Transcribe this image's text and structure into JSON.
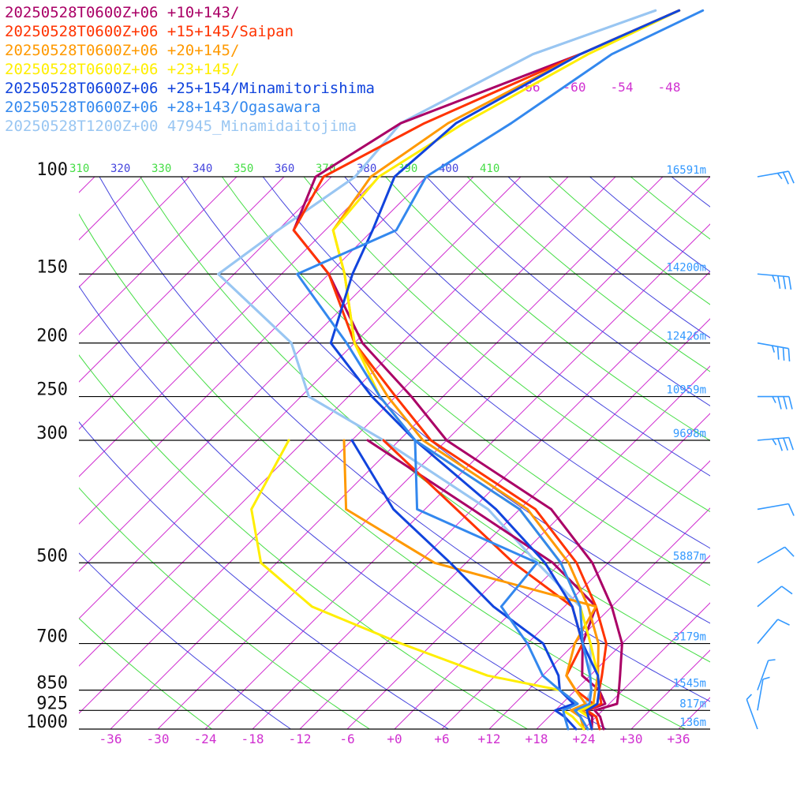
{
  "chart_data": {
    "type": "line",
    "title": "",
    "xlabel": "",
    "ylabel": "",
    "pressure_axis": {
      "scale": "log",
      "range_hpa": [
        1000,
        100
      ],
      "levels": [
        {
          "p": 100,
          "label": "100",
          "height": "16591m"
        },
        {
          "p": 150,
          "label": "150",
          "height": "14200m"
        },
        {
          "p": 200,
          "label": "200",
          "height": "12426m"
        },
        {
          "p": 250,
          "label": "250",
          "height": "10959m"
        },
        {
          "p": 300,
          "label": "300",
          "height": "9698m"
        },
        {
          "p": 500,
          "label": "500",
          "height": "5887m"
        },
        {
          "p": 700,
          "label": "700",
          "height": "3179m"
        },
        {
          "p": 850,
          "label": "850",
          "height": "1545m"
        },
        {
          "p": 925,
          "label": "925",
          "height": "817m"
        },
        {
          "p": 1000,
          "label": "1000",
          "height": "136m"
        }
      ]
    },
    "temperature_axis": {
      "range_c": [
        -40,
        40
      ],
      "ticks": [
        {
          "t": -36,
          "label": "-36"
        },
        {
          "t": -30,
          "label": "-30"
        },
        {
          "t": -24,
          "label": "-24"
        },
        {
          "t": -18,
          "label": "-18"
        },
        {
          "t": -12,
          "label": "-12"
        },
        {
          "t": -6,
          "label": "-6"
        },
        {
          "t": 0,
          "label": "+0"
        },
        {
          "t": 6,
          "label": "+6"
        },
        {
          "t": 12,
          "label": "+12"
        },
        {
          "t": 18,
          "label": "+18"
        },
        {
          "t": 24,
          "label": "+24"
        },
        {
          "t": 30,
          "label": "+30"
        },
        {
          "t": 36,
          "label": "+36"
        }
      ],
      "upper_labels": [
        "-66",
        "-60",
        "-54",
        "-48"
      ]
    },
    "theta_labels": [
      {
        "value": "310",
        "color": "#44dd44"
      },
      {
        "value": "320",
        "color": "#4444dd"
      },
      {
        "value": "330",
        "color": "#44dd44"
      },
      {
        "value": "340",
        "color": "#4444dd"
      },
      {
        "value": "350",
        "color": "#44dd44"
      },
      {
        "value": "360",
        "color": "#4444dd"
      },
      {
        "value": "370",
        "color": "#44dd44"
      },
      {
        "value": "380",
        "color": "#4444dd"
      },
      {
        "value": "390",
        "color": "#44dd44"
      },
      {
        "value": "400",
        "color": "#4444dd"
      },
      {
        "value": "410",
        "color": "#44dd44"
      }
    ],
    "series": [
      {
        "name": "20250528T0600Z+06 +10+143/",
        "color": "#aa0066",
        "temperature": [
          [
            1000,
            26.5
          ],
          [
            950,
            24.5
          ],
          [
            925,
            23
          ],
          [
            900,
            25
          ],
          [
            850,
            23.5
          ],
          [
            800,
            21.8
          ],
          [
            700,
            18
          ],
          [
            600,
            12
          ],
          [
            500,
            4
          ],
          [
            400,
            -8
          ],
          [
            300,
            -30
          ],
          [
            250,
            -40
          ],
          [
            200,
            -53
          ],
          [
            150,
            -66
          ],
          [
            125,
            -76
          ],
          [
            100,
            -80
          ],
          [
            80,
            -76
          ],
          [
            60,
            -62
          ],
          [
            50,
            -55
          ]
        ],
        "dewpoint": [
          [
            1000,
            25
          ],
          [
            950,
            23.5
          ],
          [
            925,
            22
          ],
          [
            900,
            23.5
          ],
          [
            850,
            21
          ],
          [
            800,
            17
          ],
          [
            700,
            13
          ],
          [
            600,
            10
          ],
          [
            500,
            -1
          ],
          [
            400,
            -18
          ],
          [
            300,
            -40
          ]
        ]
      },
      {
        "name": "20250528T0600Z+06 +15+145/Saipan",
        "color": "#ff3300",
        "temperature": [
          [
            1000,
            26
          ],
          [
            950,
            24
          ],
          [
            925,
            22
          ],
          [
            900,
            23
          ],
          [
            850,
            21
          ],
          [
            800,
            19.5
          ],
          [
            700,
            16
          ],
          [
            600,
            10
          ],
          [
            500,
            2
          ],
          [
            400,
            -10
          ],
          [
            300,
            -32
          ],
          [
            250,
            -42
          ],
          [
            200,
            -54
          ],
          [
            150,
            -66
          ],
          [
            125,
            -76
          ],
          [
            100,
            -79
          ],
          [
            80,
            -73
          ],
          [
            60,
            -62
          ],
          [
            50,
            -55
          ]
        ],
        "dewpoint": [
          [
            1000,
            25
          ],
          [
            950,
            23
          ],
          [
            925,
            21.5
          ],
          [
            900,
            22
          ],
          [
            850,
            18
          ],
          [
            800,
            15
          ],
          [
            700,
            13
          ],
          [
            600,
            7
          ],
          [
            500,
            -6
          ],
          [
            400,
            -20
          ],
          [
            300,
            -38
          ]
        ]
      },
      {
        "name": "20250528T0600Z+06 +20+145/",
        "color": "#ff9900",
        "temperature": [
          [
            1000,
            25
          ],
          [
            950,
            23
          ],
          [
            925,
            21.5
          ],
          [
            900,
            22
          ],
          [
            850,
            20.5
          ],
          [
            800,
            19
          ],
          [
            700,
            15
          ],
          [
            600,
            9
          ],
          [
            500,
            1
          ],
          [
            400,
            -11
          ],
          [
            300,
            -33
          ],
          [
            250,
            -43
          ],
          [
            200,
            -54
          ],
          [
            150,
            -64
          ],
          [
            125,
            -71
          ],
          [
            100,
            -73
          ],
          [
            80,
            -70
          ],
          [
            60,
            -62
          ],
          [
            50,
            -55
          ]
        ],
        "dewpoint": [
          [
            1000,
            24
          ],
          [
            950,
            22
          ],
          [
            925,
            20
          ],
          [
            900,
            21
          ],
          [
            850,
            18
          ],
          [
            800,
            15
          ],
          [
            700,
            12
          ],
          [
            600,
            10
          ],
          [
            500,
            -16
          ],
          [
            400,
            -34
          ],
          [
            300,
            -43
          ]
        ]
      },
      {
        "name": "20250528T0600Z+06 +23+145/",
        "color": "#ffee00",
        "temperature": [
          [
            1000,
            25
          ],
          [
            950,
            23
          ],
          [
            925,
            21
          ],
          [
            900,
            22.5
          ],
          [
            850,
            21
          ],
          [
            800,
            19
          ],
          [
            700,
            14
          ],
          [
            600,
            8
          ],
          [
            500,
            0
          ],
          [
            400,
            -12
          ],
          [
            300,
            -34
          ],
          [
            250,
            -44
          ],
          [
            200,
            -54
          ],
          [
            150,
            -64
          ],
          [
            125,
            -71
          ],
          [
            100,
            -72
          ],
          [
            80,
            -68
          ],
          [
            60,
            -61
          ],
          [
            50,
            -55
          ]
        ],
        "dewpoint": [
          [
            1000,
            24
          ],
          [
            950,
            21
          ],
          [
            925,
            19
          ],
          [
            900,
            20
          ],
          [
            850,
            16
          ],
          [
            800,
            5
          ],
          [
            700,
            -10
          ],
          [
            600,
            -26
          ],
          [
            500,
            -38
          ],
          [
            400,
            -46
          ],
          [
            300,
            -50
          ]
        ]
      },
      {
        "name": "20250528T0600Z+06 +25+154/Minamitorishima",
        "color": "#1144dd",
        "temperature": [
          [
            1000,
            25
          ],
          [
            950,
            23
          ],
          [
            925,
            22
          ],
          [
            900,
            22.5
          ],
          [
            850,
            21
          ],
          [
            800,
            19
          ],
          [
            700,
            13
          ],
          [
            600,
            7
          ],
          [
            500,
            -2
          ],
          [
            400,
            -15
          ],
          [
            300,
            -34
          ],
          [
            250,
            -45
          ],
          [
            200,
            -57
          ],
          [
            150,
            -63
          ],
          [
            125,
            -66
          ],
          [
            100,
            -70
          ],
          [
            80,
            -69
          ],
          [
            60,
            -62
          ],
          [
            50,
            -55
          ]
        ],
        "dewpoint": [
          [
            1000,
            23
          ],
          [
            950,
            20
          ],
          [
            925,
            18
          ],
          [
            900,
            19.5
          ],
          [
            850,
            16
          ],
          [
            800,
            14
          ],
          [
            700,
            8
          ],
          [
            600,
            -3
          ],
          [
            500,
            -14
          ],
          [
            400,
            -28
          ],
          [
            300,
            -42
          ]
        ]
      },
      {
        "name": "20250528T0600Z+06 +28+143/Ogasawara",
        "color": "#3388ee",
        "temperature": [
          [
            1000,
            24.5
          ],
          [
            950,
            22
          ],
          [
            925,
            20.5
          ],
          [
            900,
            21.5
          ],
          [
            850,
            20
          ],
          [
            800,
            18
          ],
          [
            700,
            13
          ],
          [
            600,
            8
          ],
          [
            500,
            0
          ],
          [
            400,
            -12
          ],
          [
            300,
            -34
          ],
          [
            250,
            -44
          ],
          [
            200,
            -55
          ],
          [
            150,
            -70
          ],
          [
            125,
            -63
          ],
          [
            100,
            -66
          ],
          [
            80,
            -62
          ],
          [
            60,
            -58
          ],
          [
            50,
            -52
          ]
        ],
        "dewpoint": [
          [
            1000,
            22
          ],
          [
            950,
            20
          ],
          [
            925,
            19
          ],
          [
            900,
            20
          ],
          [
            850,
            16
          ],
          [
            800,
            12
          ],
          [
            700,
            6
          ],
          [
            600,
            -2
          ],
          [
            500,
            -3
          ],
          [
            400,
            -25
          ],
          [
            300,
            -34
          ]
        ]
      },
      {
        "name": "20250528T1200Z+00 47945_Minamidaitojima",
        "color": "#99c6f2",
        "temperature": [
          [
            1000,
            24
          ],
          [
            950,
            22
          ],
          [
            925,
            20.5
          ],
          [
            900,
            21
          ],
          [
            850,
            20
          ],
          [
            800,
            18
          ],
          [
            700,
            14
          ],
          [
            600,
            8
          ],
          [
            500,
            -3
          ],
          [
            400,
            -16
          ],
          [
            300,
            -38
          ],
          [
            250,
            -53
          ],
          [
            200,
            -62
          ],
          [
            150,
            -80
          ],
          [
            125,
            -78
          ],
          [
            100,
            -75
          ],
          [
            80,
            -76
          ],
          [
            60,
            -68
          ],
          [
            50,
            -58
          ]
        ],
        "dewpoint": [
          [
            1000,
            24
          ],
          [
            950,
            22
          ],
          [
            925,
            20.5
          ],
          [
            900,
            21
          ],
          [
            850,
            20
          ],
          [
            800,
            18
          ],
          [
            700,
            14
          ],
          [
            600,
            8
          ],
          [
            500,
            -3
          ],
          [
            400,
            -16
          ],
          [
            300,
            -38
          ],
          [
            250,
            -53
          ],
          [
            200,
            -62
          ],
          [
            150,
            -80
          ],
          [
            125,
            -78
          ],
          [
            100,
            -75
          ],
          [
            80,
            -76
          ],
          [
            60,
            -68
          ],
          [
            50,
            -58
          ]
        ]
      }
    ],
    "wind_barbs": [
      {
        "p": 100,
        "speed_kt": 25,
        "dir": 260
      },
      {
        "p": 150,
        "speed_kt": 35,
        "dir": 275
      },
      {
        "p": 200,
        "speed_kt": 35,
        "dir": 280
      },
      {
        "p": 250,
        "speed_kt": 35,
        "dir": 270
      },
      {
        "p": 300,
        "speed_kt": 35,
        "dir": 265
      },
      {
        "p": 400,
        "speed_kt": 10,
        "dir": 260
      },
      {
        "p": 500,
        "speed_kt": 10,
        "dir": 240
      },
      {
        "p": 600,
        "speed_kt": 10,
        "dir": 230
      },
      {
        "p": 700,
        "speed_kt": 10,
        "dir": 220
      },
      {
        "p": 850,
        "speed_kt": 5,
        "dir": 200
      },
      {
        "p": 925,
        "speed_kt": 5,
        "dir": 190
      },
      {
        "p": 1000,
        "speed_kt": 5,
        "dir": 160
      }
    ],
    "grid": true
  }
}
